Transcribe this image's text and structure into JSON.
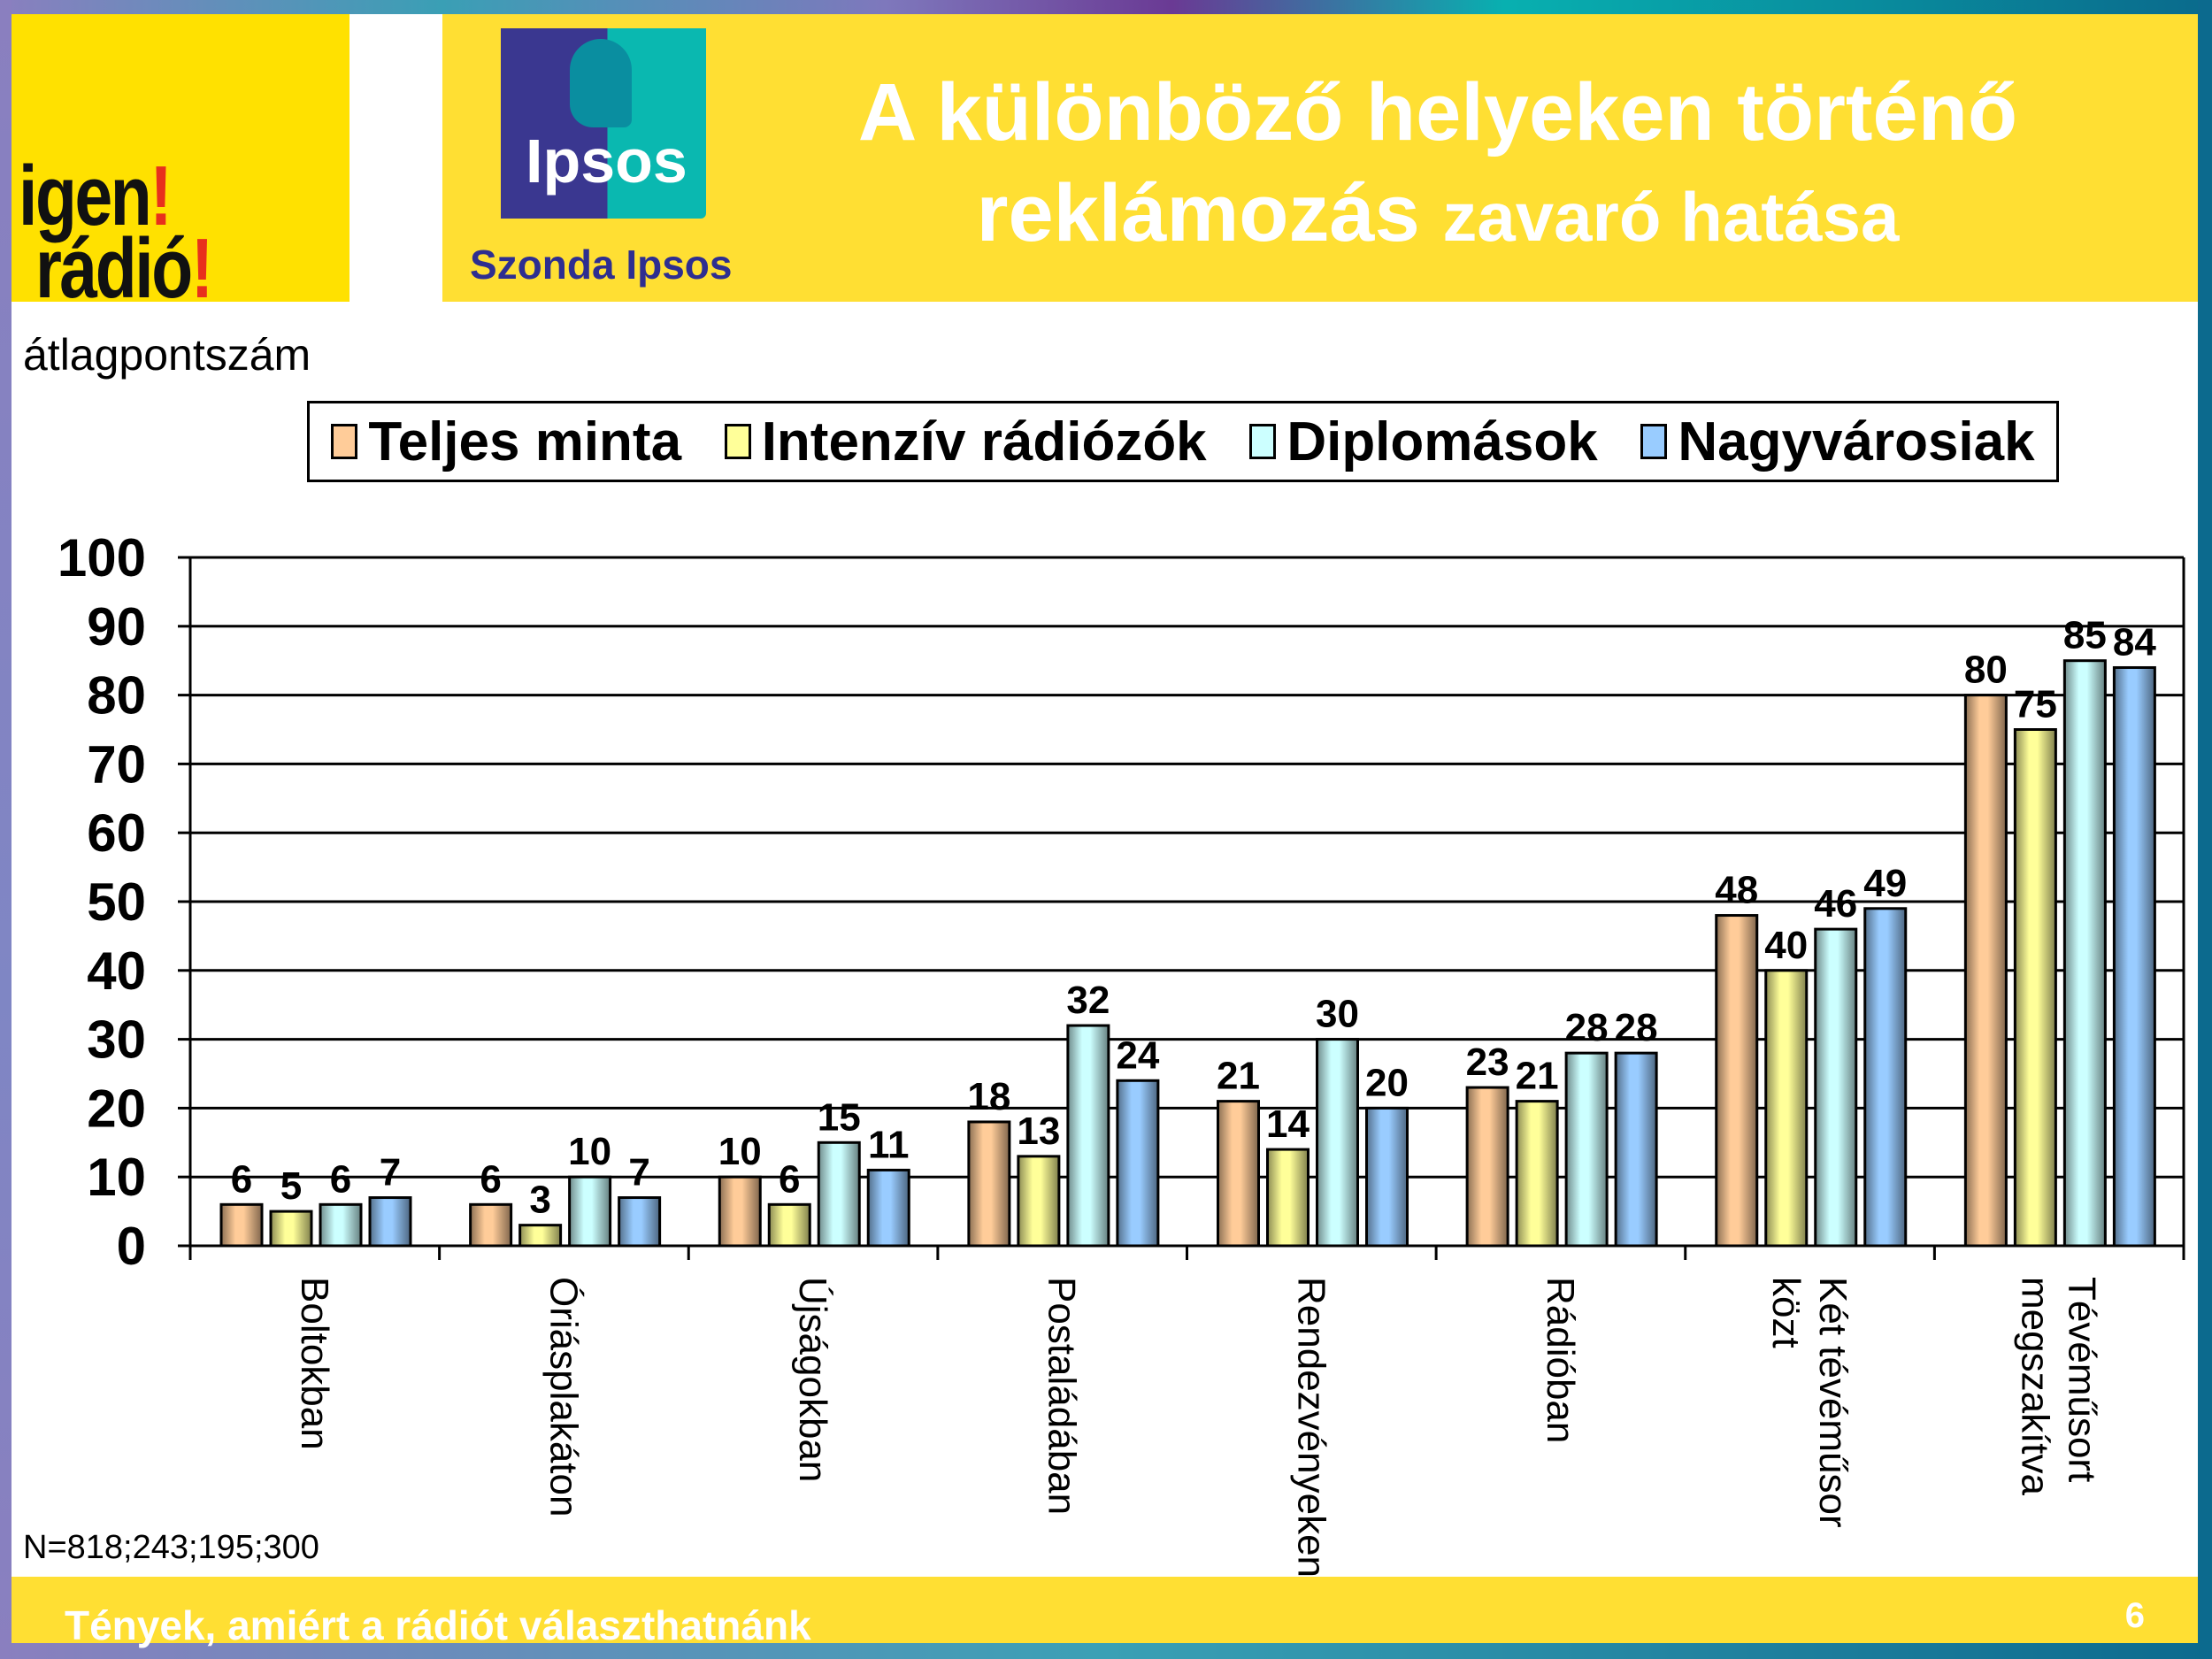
{
  "header": {
    "logo_text": "igen! rádió!",
    "ipsos_logo_text": "Ipsos",
    "company": "Szonda Ipsos",
    "title_line1": "A különböző helyeken történő",
    "title_line2a": "reklámozás",
    "title_line2b": "zavaró hatása"
  },
  "footer": {
    "sample_note": "N=818;243;195;300",
    "tagline": "Tények, amiért a rádiót választhatnánk",
    "page_number": "6"
  },
  "chart_data": {
    "type": "bar",
    "title": "A különböző helyeken történő reklámozás zavaró hatása",
    "ylabel": "átlagpontszám",
    "xlabel": "",
    "ylim": [
      0,
      100
    ],
    "yticks": [
      0,
      10,
      20,
      30,
      40,
      50,
      60,
      70,
      80,
      90,
      100
    ],
    "grid": true,
    "legend_position": "top",
    "categories": [
      [
        "Boltokban"
      ],
      [
        "Óriásplakáton"
      ],
      [
        "Újságokban"
      ],
      [
        "Postaládában"
      ],
      [
        "Rendezvényeken"
      ],
      [
        "Rádióban"
      ],
      [
        "Két tévéműsor",
        "közt"
      ],
      [
        "Tévéműsort",
        "megszakítva"
      ]
    ],
    "series": [
      {
        "name": "Teljes minta",
        "color": "#FFCC99",
        "values": [
          6,
          6,
          10,
          18,
          21,
          23,
          48,
          80
        ]
      },
      {
        "name": "Intenzív rádiózók",
        "color": "#FFFF99",
        "values": [
          5,
          3,
          6,
          13,
          14,
          21,
          40,
          75
        ]
      },
      {
        "name": "Diplomások",
        "color": "#CCFFFF",
        "values": [
          6,
          10,
          15,
          32,
          30,
          28,
          46,
          85
        ]
      },
      {
        "name": "Nagyvárosiak",
        "color": "#99CCFF",
        "values": [
          7,
          7,
          11,
          24,
          20,
          28,
          49,
          84
        ]
      }
    ]
  }
}
